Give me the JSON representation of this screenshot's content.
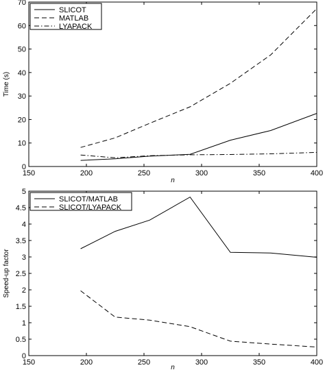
{
  "chart_data": [
    {
      "type": "line",
      "xlabel": "n",
      "ylabel": "Time (s)",
      "xlim": [
        150,
        400
      ],
      "ylim": [
        0,
        70
      ],
      "xticks": [
        150,
        200,
        250,
        300,
        350,
        400
      ],
      "yticks": [
        0,
        10,
        20,
        30,
        40,
        50,
        60,
        70
      ],
      "x": [
        195,
        225,
        255,
        290,
        325,
        360,
        400
      ],
      "legend_position": "top-left",
      "grid": false,
      "series": [
        {
          "name": "SLICOT",
          "style": "solid",
          "values": [
            2.6,
            3.3,
            4.4,
            5.2,
            11.2,
            15.3,
            22.6
          ]
        },
        {
          "name": "MATLAB",
          "style": "dashed",
          "values": [
            8.1,
            12.2,
            18.4,
            25.4,
            35.4,
            47.5,
            67.2
          ]
        },
        {
          "name": "LYAPACK",
          "style": "dashdot",
          "values": [
            4.9,
            3.7,
            4.6,
            5.0,
            5.1,
            5.4,
            6.0
          ]
        }
      ]
    },
    {
      "type": "line",
      "xlabel": "n",
      "ylabel": "Speed-up factor",
      "xlim": [
        150,
        400
      ],
      "ylim": [
        0,
        5
      ],
      "xticks": [
        150,
        200,
        250,
        300,
        350,
        400
      ],
      "yticks": [
        0,
        0.5,
        1,
        1.5,
        2,
        2.5,
        3,
        3.5,
        4,
        4.5,
        5
      ],
      "x": [
        195,
        225,
        255,
        290,
        325,
        360,
        400
      ],
      "legend_position": "top-left",
      "grid": false,
      "series": [
        {
          "name": "SLICOT/MATLAB",
          "style": "solid",
          "values": [
            3.25,
            3.78,
            4.12,
            4.82,
            3.14,
            3.12,
            2.99
          ]
        },
        {
          "name": "SLICOT/LYAPACK",
          "style": "dashed",
          "values": [
            1.97,
            1.17,
            1.08,
            0.88,
            0.44,
            0.35,
            0.26
          ]
        }
      ]
    }
  ]
}
